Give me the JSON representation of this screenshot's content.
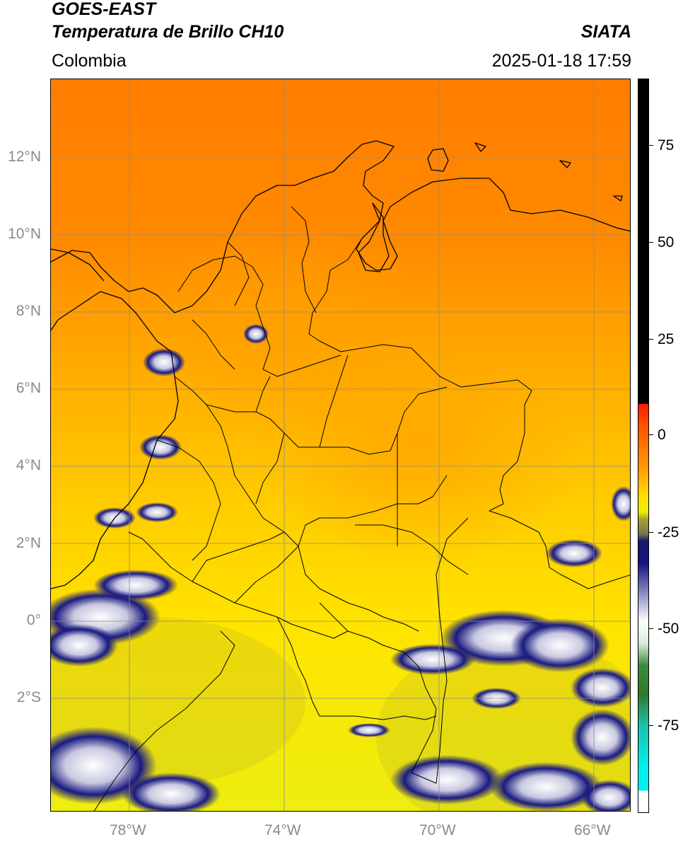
{
  "header": {
    "satellite": "GOES-EAST",
    "product": "Temperatura de Brillo CH10",
    "region": "Colombia",
    "agency": "SIATA",
    "datetime": "2025-01-18 17:59"
  },
  "map": {
    "lat_labels": [
      "12°N",
      "10°N",
      "8°N",
      "6°N",
      "4°N",
      "2°N",
      "0°",
      "2°S"
    ],
    "lon_labels": [
      "78°W",
      "74°W",
      "70°W",
      "66°W"
    ],
    "gridline_color": "#8c8c8c",
    "coastline_color": "#000000"
  },
  "colorbar": {
    "tick_labels": [
      "75",
      "50",
      "25",
      "0",
      "-25",
      "-50",
      "-75"
    ],
    "colors": {
      "top": "#000000",
      "red": "#ff1a00",
      "orange": "#ff8c00",
      "yellow": "#ffee00",
      "olive": "#9c9c3c",
      "navy": "#0b0b6e",
      "white": "#ffffff",
      "green": "#2f7a2f",
      "teal": "#1dbfa6",
      "cyan": "#00f0f0"
    }
  }
}
